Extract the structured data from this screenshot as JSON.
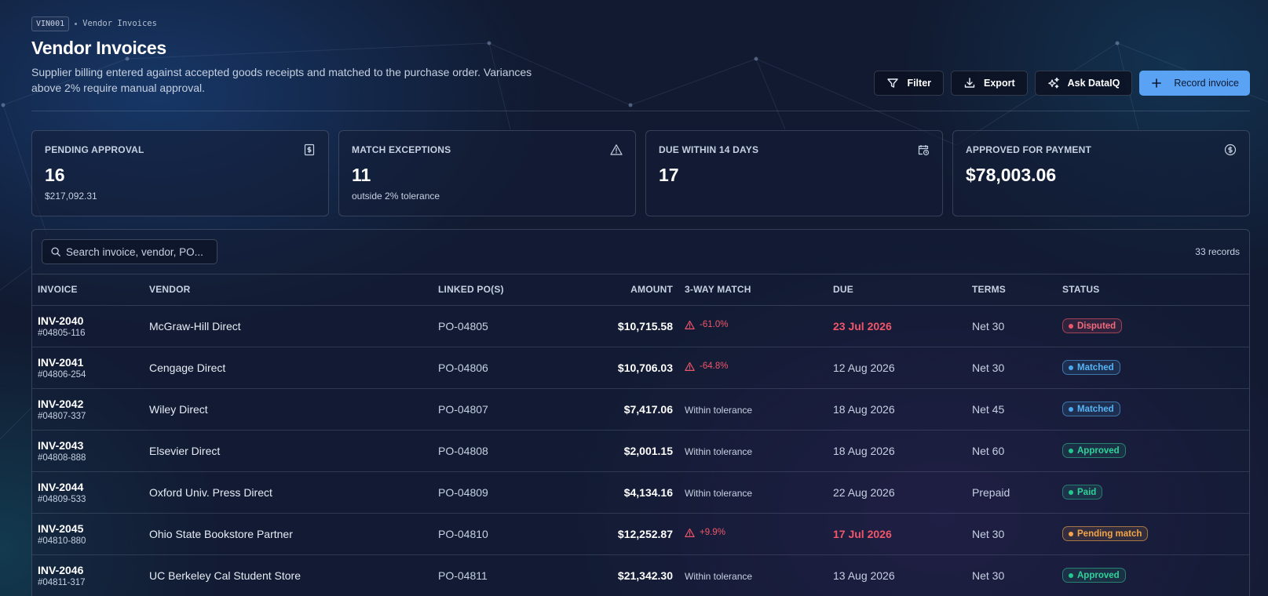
{
  "breadcrumb": {
    "code": "VIN001",
    "page": "Vendor Invoices"
  },
  "header": {
    "title": "Vendor Invoices",
    "subtitle": "Supplier billing entered against accepted goods receipts and matched to the purchase order. Variances above 2% require manual approval."
  },
  "actions": {
    "filter": "Filter",
    "export": "Export",
    "ask": "Ask DataIQ",
    "record": "Record invoice"
  },
  "kpis": [
    {
      "label": "PENDING APPROVAL",
      "value": "16",
      "sub": "$217,092.31",
      "icon": "invoice-icon"
    },
    {
      "label": "MATCH EXCEPTIONS",
      "value": "11",
      "sub": "outside 2% tolerance",
      "icon": "warning-icon"
    },
    {
      "label": "DUE WITHIN 14 DAYS",
      "value": "17",
      "sub": "",
      "icon": "calendar-clock-icon"
    },
    {
      "label": "APPROVED FOR PAYMENT",
      "value": "$78,003.06",
      "sub": "",
      "icon": "dollar-circle-icon"
    }
  ],
  "table": {
    "search_placeholder": "Search invoice, vendor, PO...",
    "record_count": "33 records",
    "columns": {
      "invoice": "INVOICE",
      "vendor": "VENDOR",
      "po": "LINKED PO(S)",
      "amount": "AMOUNT",
      "match": "3-WAY MATCH",
      "due": "DUE",
      "terms": "TERMS",
      "status": "STATUS"
    },
    "rows": [
      {
        "invoice": "INV-2040",
        "ref": "#04805-116",
        "vendor": "McGraw-Hill Direct",
        "po": "PO-04805",
        "amount": "$10,715.58",
        "match": "-61.0%",
        "match_type": "variance",
        "due": "23 Jul 2026",
        "due_late": true,
        "terms": "Net 30",
        "status": "Disputed",
        "status_type": "disputed"
      },
      {
        "invoice": "INV-2041",
        "ref": "#04806-254",
        "vendor": "Cengage Direct",
        "po": "PO-04806",
        "amount": "$10,706.03",
        "match": "-64.8%",
        "match_type": "variance",
        "due": "12 Aug 2026",
        "due_late": false,
        "terms": "Net 30",
        "status": "Matched",
        "status_type": "matched"
      },
      {
        "invoice": "INV-2042",
        "ref": "#04807-337",
        "vendor": "Wiley Direct",
        "po": "PO-04807",
        "amount": "$7,417.06",
        "match": "Within tolerance",
        "match_type": "ok",
        "due": "18 Aug 2026",
        "due_late": false,
        "terms": "Net 45",
        "status": "Matched",
        "status_type": "matched"
      },
      {
        "invoice": "INV-2043",
        "ref": "#04808-888",
        "vendor": "Elsevier Direct",
        "po": "PO-04808",
        "amount": "$2,001.15",
        "match": "Within tolerance",
        "match_type": "ok",
        "due": "18 Aug 2026",
        "due_late": false,
        "terms": "Net 60",
        "status": "Approved",
        "status_type": "approved"
      },
      {
        "invoice": "INV-2044",
        "ref": "#04809-533",
        "vendor": "Oxford Univ. Press Direct",
        "po": "PO-04809",
        "amount": "$4,134.16",
        "match": "Within tolerance",
        "match_type": "ok",
        "due": "22 Aug 2026",
        "due_late": false,
        "terms": "Prepaid",
        "status": "Paid",
        "status_type": "paid"
      },
      {
        "invoice": "INV-2045",
        "ref": "#04810-880",
        "vendor": "Ohio State Bookstore Partner",
        "po": "PO-04810",
        "amount": "$12,252.87",
        "match": "+9.9%",
        "match_type": "variance",
        "due": "17 Jul 2026",
        "due_late": true,
        "terms": "Net 30",
        "status": "Pending match",
        "status_type": "pending"
      },
      {
        "invoice": "INV-2046",
        "ref": "#04811-317",
        "vendor": "UC Berkeley Cal Student Store",
        "po": "PO-04811",
        "amount": "$21,342.30",
        "match": "Within tolerance",
        "match_type": "ok",
        "due": "13 Aug 2026",
        "due_late": false,
        "terms": "Net 30",
        "status": "Approved",
        "status_type": "approved"
      }
    ]
  }
}
